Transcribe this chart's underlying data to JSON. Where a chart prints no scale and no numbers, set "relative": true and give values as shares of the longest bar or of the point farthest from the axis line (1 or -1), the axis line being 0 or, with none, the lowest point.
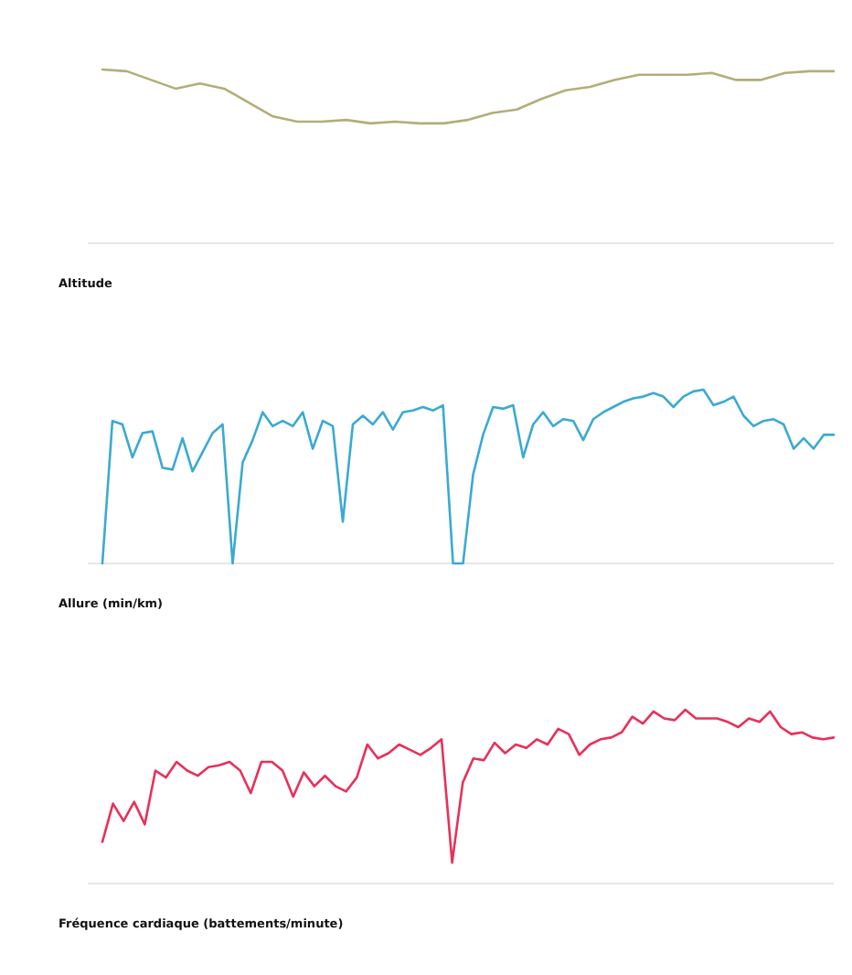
{
  "chart_data": [
    {
      "type": "line",
      "title": "Altitude",
      "relative": true,
      "categories": [
        null,
        null,
        null,
        null,
        null,
        null,
        null,
        null,
        null,
        null,
        null,
        null,
        null,
        null,
        null,
        null,
        null,
        null,
        null,
        null,
        null,
        null,
        null,
        null,
        null,
        null,
        null,
        null,
        null,
        null,
        null
      ],
      "series": [
        {
          "color": "#b3ae78",
          "values": [
            1,
            0.99,
            0.94,
            0.89,
            0.92,
            0.89,
            0.81,
            0.73,
            0.7,
            0.7,
            0.71,
            0.69,
            0.7,
            0.69,
            0.69,
            0.71,
            0.75,
            0.77,
            0.83,
            0.88,
            0.9,
            0.94,
            0.97,
            0.97,
            0.97,
            0.98,
            0.94,
            0.94,
            0.98,
            0.99,
            0.99
          ]
        }
      ]
    },
    {
      "type": "line",
      "title": "Allure (min/km)",
      "relative": true,
      "categories": [
        null,
        null,
        null,
        null,
        null,
        null,
        null,
        null,
        null,
        null,
        null,
        null,
        null,
        null,
        null,
        null,
        null,
        null,
        null,
        null,
        null,
        null,
        null,
        null,
        null,
        null,
        null,
        null,
        null,
        null,
        null,
        null,
        null,
        null,
        null,
        null,
        null,
        null,
        null,
        null,
        null,
        null,
        null,
        null,
        null,
        null,
        null,
        null,
        null,
        null,
        null,
        null,
        null,
        null,
        null,
        null,
        null,
        null,
        null,
        null,
        null,
        null,
        null,
        null,
        null,
        null,
        null,
        null,
        null,
        null,
        null,
        null,
        null,
        null
      ],
      "series": [
        {
          "color": "#3aaad2",
          "values": [
            0,
            0.82,
            0.8,
            0.61,
            0.75,
            0.76,
            0.55,
            0.54,
            0.72,
            0.53,
            0.64,
            0.75,
            0.8,
            0,
            0.58,
            0.71,
            0.87,
            0.79,
            0.82,
            0.79,
            0.87,
            0.66,
            0.82,
            0.79,
            0.24,
            0.8,
            0.85,
            0.8,
            0.87,
            0.77,
            0.87,
            0.88,
            0.9,
            0.88,
            0.91,
            0,
            0,
            0.51,
            0.74,
            0.9,
            0.89,
            0.91,
            0.61,
            0.8,
            0.87,
            0.79,
            0.83,
            0.82,
            0.71,
            0.83,
            0.87,
            0.9,
            0.93,
            0.95,
            0.96,
            0.98,
            0.96,
            0.9,
            0.96,
            0.99,
            1,
            0.91,
            0.93,
            0.96,
            0.85,
            0.79,
            0.82,
            0.83,
            0.8,
            0.66,
            0.72,
            0.66,
            0.74,
            0.74
          ]
        }
      ]
    },
    {
      "type": "line",
      "title": "Fréquence cardiaque (battements/minute)",
      "relative": true,
      "categories": [
        null,
        null,
        null,
        null,
        null,
        null,
        null,
        null,
        null,
        null,
        null,
        null,
        null,
        null,
        null,
        null,
        null,
        null,
        null,
        null,
        null,
        null,
        null,
        null,
        null,
        null,
        null,
        null,
        null,
        null,
        null,
        null,
        null,
        null,
        null,
        null,
        null,
        null,
        null,
        null,
        null,
        null,
        null,
        null,
        null,
        null,
        null,
        null,
        null,
        null,
        null,
        null,
        null,
        null,
        null,
        null,
        null,
        null,
        null,
        null,
        null,
        null,
        null,
        null,
        null,
        null,
        null,
        null,
        null,
        null
      ],
      "series": [
        {
          "color": "#e8305a",
          "values": [
            0.24,
            0.46,
            0.36,
            0.47,
            0.34,
            0.65,
            0.61,
            0.7,
            0.65,
            0.62,
            0.67,
            0.68,
            0.7,
            0.65,
            0.52,
            0.7,
            0.7,
            0.65,
            0.5,
            0.64,
            0.56,
            0.62,
            0.56,
            0.53,
            0.61,
            0.8,
            0.72,
            0.75,
            0.8,
            0.77,
            0.74,
            0.78,
            0.83,
            0.12,
            0.58,
            0.72,
            0.71,
            0.81,
            0.75,
            0.8,
            0.78,
            0.83,
            0.8,
            0.89,
            0.86,
            0.74,
            0.8,
            0.83,
            0.84,
            0.87,
            0.96,
            0.92,
            0.99,
            0.95,
            0.94,
            1,
            0.95,
            0.95,
            0.95,
            0.93,
            0.9,
            0.95,
            0.93,
            0.99,
            0.9,
            0.86,
            0.87,
            0.84,
            0.83,
            0.84
          ]
        }
      ]
    }
  ]
}
